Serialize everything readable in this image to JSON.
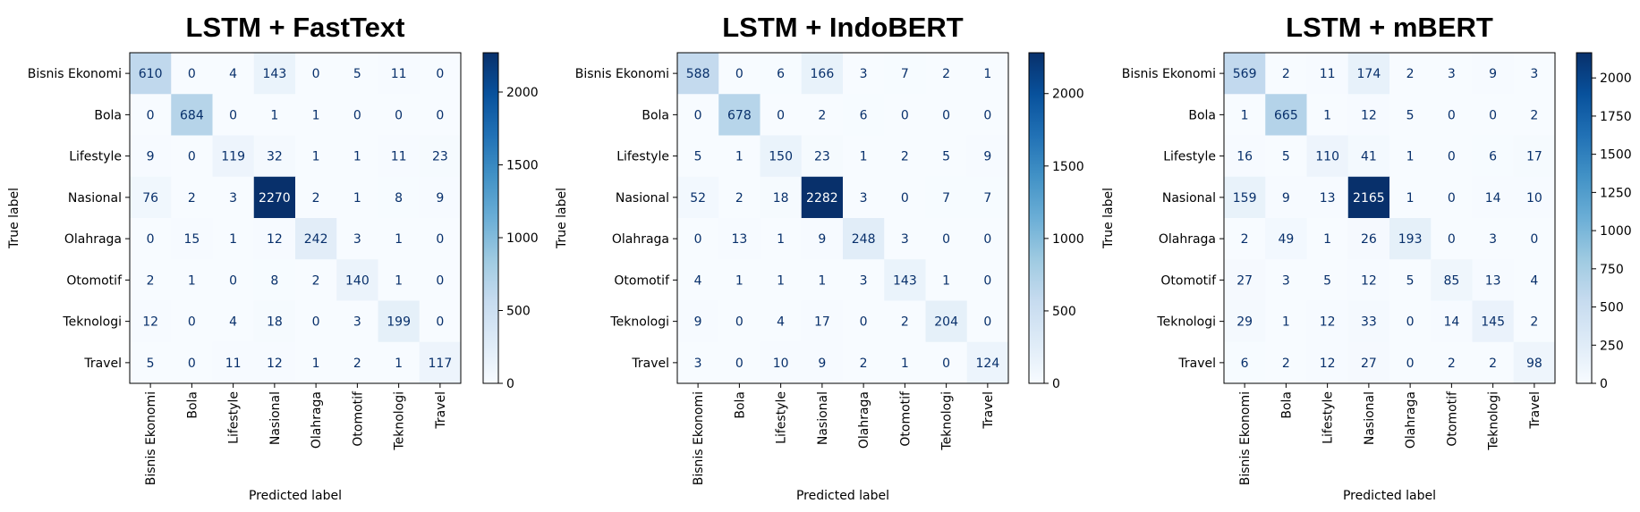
{
  "chart_data": [
    {
      "type": "heatmap",
      "title": "LSTM + FastText",
      "xlabel": "Predicted label",
      "ylabel": "True label",
      "labels": [
        "Bisnis Ekonomi",
        "Bola",
        "Lifestyle",
        "Nasional",
        "Olahraga",
        "Otomotif",
        "Teknologi",
        "Travel"
      ],
      "matrix": [
        [
          610,
          0,
          4,
          143,
          0,
          5,
          11,
          0
        ],
        [
          0,
          684,
          0,
          1,
          1,
          0,
          0,
          0
        ],
        [
          9,
          0,
          119,
          32,
          1,
          1,
          11,
          23
        ],
        [
          76,
          2,
          3,
          2270,
          2,
          1,
          8,
          9
        ],
        [
          0,
          15,
          1,
          12,
          242,
          3,
          1,
          0
        ],
        [
          2,
          1,
          0,
          8,
          2,
          140,
          1,
          0
        ],
        [
          12,
          0,
          4,
          18,
          0,
          3,
          199,
          0
        ],
        [
          5,
          0,
          11,
          12,
          1,
          2,
          1,
          117
        ]
      ],
      "colorbar": {
        "ticks": [
          0,
          500,
          1000,
          1500,
          2000
        ],
        "range": [
          0,
          2270
        ]
      },
      "colormap": "Blues"
    },
    {
      "type": "heatmap",
      "title": "LSTM + IndoBERT",
      "xlabel": "Predicted label",
      "ylabel": "True label",
      "labels": [
        "Bisnis Ekonomi",
        "Bola",
        "Lifestyle",
        "Nasional",
        "Olahraga",
        "Otomotif",
        "Teknologi",
        "Travel"
      ],
      "matrix": [
        [
          588,
          0,
          6,
          166,
          3,
          7,
          2,
          1
        ],
        [
          0,
          678,
          0,
          2,
          6,
          0,
          0,
          0
        ],
        [
          5,
          1,
          150,
          23,
          1,
          2,
          5,
          9
        ],
        [
          52,
          2,
          18,
          2282,
          3,
          0,
          7,
          7
        ],
        [
          0,
          13,
          1,
          9,
          248,
          3,
          0,
          0
        ],
        [
          4,
          1,
          1,
          1,
          3,
          143,
          1,
          0
        ],
        [
          9,
          0,
          4,
          17,
          0,
          2,
          204,
          0
        ],
        [
          3,
          0,
          10,
          9,
          2,
          1,
          0,
          124
        ]
      ],
      "colorbar": {
        "ticks": [
          0,
          500,
          1000,
          1500,
          2000
        ],
        "range": [
          0,
          2282
        ]
      },
      "colormap": "Blues"
    },
    {
      "type": "heatmap",
      "title": "LSTM + mBERT",
      "xlabel": "Predicted label",
      "ylabel": "True label",
      "labels": [
        "Bisnis Ekonomi",
        "Bola",
        "Lifestyle",
        "Nasional",
        "Olahraga",
        "Otomotif",
        "Teknologi",
        "Travel"
      ],
      "matrix": [
        [
          569,
          2,
          11,
          174,
          2,
          3,
          9,
          3
        ],
        [
          1,
          665,
          1,
          12,
          5,
          0,
          0,
          2
        ],
        [
          16,
          5,
          110,
          41,
          1,
          0,
          6,
          17
        ],
        [
          159,
          9,
          13,
          2165,
          1,
          0,
          14,
          10
        ],
        [
          2,
          49,
          1,
          26,
          193,
          0,
          3,
          0
        ],
        [
          27,
          3,
          5,
          12,
          5,
          85,
          13,
          4
        ],
        [
          29,
          1,
          12,
          33,
          0,
          14,
          145,
          2
        ],
        [
          6,
          2,
          12,
          27,
          0,
          2,
          2,
          98
        ]
      ],
      "colorbar": {
        "ticks": [
          0,
          250,
          500,
          750,
          1000,
          1250,
          1500,
          1750,
          2000
        ],
        "range": [
          0,
          2165
        ]
      },
      "colormap": "Blues"
    }
  ]
}
